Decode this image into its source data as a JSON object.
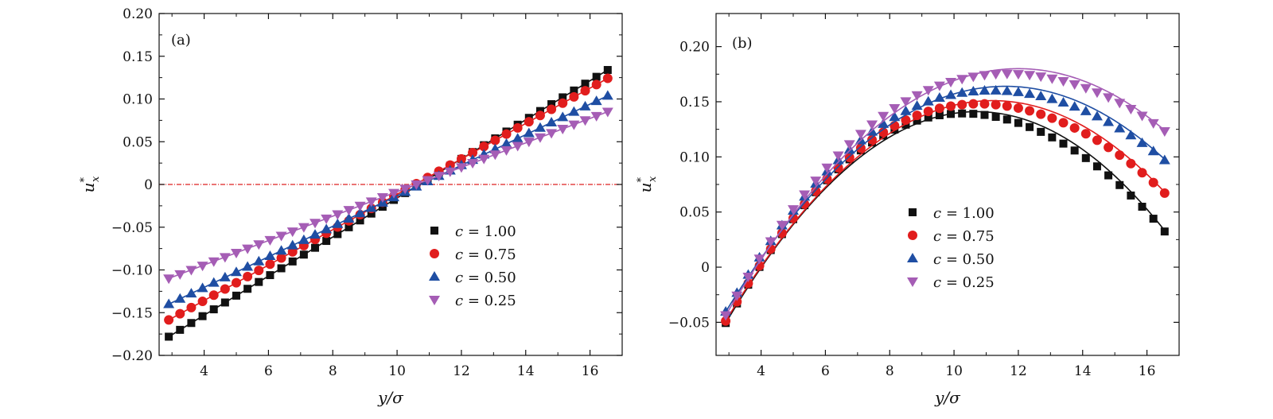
{
  "chart_data": [
    {
      "type": "scatter",
      "panel_label": "(a)",
      "xlabel": "y/σ",
      "ylabel": "u*x",
      "xlim": [
        2.6,
        17.0
      ],
      "ylim": [
        -0.2,
        0.2
      ],
      "xticks": [
        4,
        6,
        8,
        10,
        12,
        14,
        16
      ],
      "yticks": [
        -0.2,
        -0.15,
        -0.1,
        -0.05,
        0,
        0.05,
        0.1,
        0.15,
        0.2
      ],
      "ytick_labels": [
        "−0.20",
        "−0.15",
        "−0.10",
        "−0.05",
        "0",
        "0.05",
        "0.10",
        "0.15",
        "0.20"
      ],
      "reference_line": {
        "y": 0,
        "color": "#dd2222",
        "style": "dash-dot"
      },
      "legend": {
        "placement": "lower-right"
      },
      "series": [
        {
          "name": "c = 1.00",
          "color": "#111111",
          "marker": "square",
          "x_start": 2.9,
          "x_step": 0.35,
          "count": 40,
          "fit": {
            "kind": "linear",
            "slope": 0.02286,
            "intercept": -0.2444
          }
        },
        {
          "name": "c = 0.75",
          "color": "#e11d1d",
          "marker": "circle",
          "x_start": 2.9,
          "x_step": 0.35,
          "count": 40,
          "fit": {
            "kind": "linear",
            "slope": 0.02071,
            "intercept": -0.2186
          }
        },
        {
          "name": "c = 0.50",
          "color": "#1f4ea3",
          "marker": "triangle-up",
          "x_start": 2.9,
          "x_step": 0.35,
          "count": 40,
          "fit": {
            "kind": "linear",
            "slope": 0.01786,
            "intercept": -0.1918
          }
        },
        {
          "name": "c = 0.25",
          "color": "#a55db5",
          "marker": "triangle-down",
          "x_start": 2.9,
          "x_step": 0.35,
          "count": 40,
          "fit": {
            "kind": "linear",
            "slope": 0.01429,
            "intercept": -0.1514
          }
        }
      ]
    },
    {
      "type": "scatter",
      "panel_label": "(b)",
      "xlabel": "y/σ",
      "ylabel": "u*x",
      "xlim": [
        2.6,
        17.0
      ],
      "ylim": [
        -0.08,
        0.23
      ],
      "xticks": [
        4,
        6,
        8,
        10,
        12,
        14,
        16
      ],
      "yticks": [
        -0.05,
        0,
        0.05,
        0.1,
        0.15,
        0.2
      ],
      "ytick_labels": [
        "−0.05",
        "0",
        "0.05",
        "0.10",
        "0.15",
        "0.20"
      ],
      "legend": {
        "placement": "center"
      },
      "series": [
        {
          "name": "c = 1.00",
          "color": "#111111",
          "marker": "square",
          "x_start": 2.9,
          "x_step": 0.35,
          "count": 40,
          "fit": {
            "kind": "quadratic",
            "peak_x": 10.7,
            "peak_y": 0.141,
            "a": 0.00315
          }
        },
        {
          "name": "c = 0.75",
          "color": "#e11d1d",
          "marker": "circle",
          "x_start": 2.9,
          "x_step": 0.35,
          "count": 40,
          "fit": {
            "kind": "quadratic",
            "peak_x": 11.2,
            "peak_y": 0.151,
            "a": 0.0029
          }
        },
        {
          "name": "c = 0.50",
          "color": "#1f4ea3",
          "marker": "triangle-up",
          "x_start": 2.9,
          "x_step": 0.35,
          "count": 40,
          "fit": {
            "kind": "quadratic",
            "peak_x": 11.6,
            "peak_y": 0.164,
            "a": 0.0027
          }
        },
        {
          "name": "c = 0.25",
          "color": "#a55db5",
          "marker": "triangle-down",
          "x_start": 2.9,
          "x_step": 0.35,
          "count": 40,
          "fit": {
            "kind": "quadratic",
            "peak_x": 12.0,
            "peak_y": 0.18,
            "a": 0.0027
          }
        }
      ]
    }
  ]
}
